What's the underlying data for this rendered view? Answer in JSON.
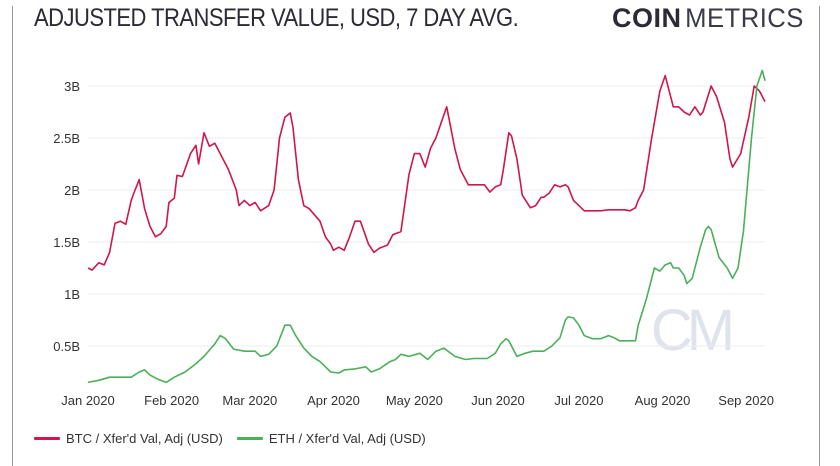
{
  "title": "ADJUSTED TRANSFER VALUE, USD, 7 DAY AVG.",
  "logo": {
    "bold": "COIN",
    "light": "METRICS",
    "watermark": "CM"
  },
  "chart_data": {
    "type": "line",
    "title": "ADJUSTED TRANSFER VALUE, USD, 7 DAY AVG.",
    "xlabel": "",
    "ylabel": "",
    "x_unit": "days since 2020-01-01",
    "xlim": [
      0,
      251
    ],
    "ylim": [
      0,
      3.2
    ],
    "y_unit": "billion USD",
    "grid": true,
    "legend_position": "bottom-left",
    "y_ticks": [
      {
        "v": 0.5,
        "label": "0.5B"
      },
      {
        "v": 1,
        "label": "1B"
      },
      {
        "v": 1.5,
        "label": "1.5B"
      },
      {
        "v": 2,
        "label": "2B"
      },
      {
        "v": 2.5,
        "label": "2.5B"
      },
      {
        "v": 3,
        "label": "3B"
      }
    ],
    "x_ticks": [
      {
        "v": 0,
        "label": "Jan 2020"
      },
      {
        "v": 31,
        "label": "Feb 2020"
      },
      {
        "v": 60,
        "label": "Mar 2020"
      },
      {
        "v": 91,
        "label": "Apr 2020"
      },
      {
        "v": 121,
        "label": "May 2020"
      },
      {
        "v": 152,
        "label": "Jun 2020"
      },
      {
        "v": 182,
        "label": "Jul 2020"
      },
      {
        "v": 213,
        "label": "Aug 2020"
      },
      {
        "v": 244,
        "label": "Sep 2020"
      }
    ],
    "series": [
      {
        "name": "BTC / Xfer'd Val, Adj (USD)",
        "color": "#d0164a",
        "points": [
          [
            0,
            1.25
          ],
          [
            1.5,
            1.23
          ],
          [
            4,
            1.3
          ],
          [
            6,
            1.28
          ],
          [
            8,
            1.4
          ],
          [
            10,
            1.68
          ],
          [
            12,
            1.7
          ],
          [
            14,
            1.67
          ],
          [
            16,
            1.9
          ],
          [
            17,
            1.97
          ],
          [
            19,
            2.1
          ],
          [
            21,
            1.82
          ],
          [
            23,
            1.65
          ],
          [
            25,
            1.55
          ],
          [
            27,
            1.58
          ],
          [
            29,
            1.65
          ],
          [
            30,
            1.88
          ],
          [
            32,
            1.92
          ],
          [
            33,
            2.14
          ],
          [
            35,
            2.13
          ],
          [
            38,
            2.35
          ],
          [
            40,
            2.43
          ],
          [
            41,
            2.25
          ],
          [
            43,
            2.55
          ],
          [
            45,
            2.42
          ],
          [
            47,
            2.45
          ],
          [
            49,
            2.35
          ],
          [
            52,
            2.2
          ],
          [
            55,
            2.0
          ],
          [
            56,
            1.85
          ],
          [
            58,
            1.9
          ],
          [
            60,
            1.85
          ],
          [
            62,
            1.88
          ],
          [
            64,
            1.8
          ],
          [
            67,
            1.85
          ],
          [
            69,
            2.0
          ],
          [
            71,
            2.5
          ],
          [
            73,
            2.7
          ],
          [
            75,
            2.74
          ],
          [
            76,
            2.6
          ],
          [
            78,
            2.1
          ],
          [
            80,
            1.85
          ],
          [
            82,
            1.82
          ],
          [
            86,
            1.7
          ],
          [
            88,
            1.55
          ],
          [
            90,
            1.48
          ],
          [
            91,
            1.42
          ],
          [
            93,
            1.45
          ],
          [
            95,
            1.42
          ],
          [
            97,
            1.55
          ],
          [
            99,
            1.7
          ],
          [
            101,
            1.7
          ],
          [
            104,
            1.48
          ],
          [
            106,
            1.4
          ],
          [
            108,
            1.44
          ],
          [
            111,
            1.47
          ],
          [
            113,
            1.57
          ],
          [
            116,
            1.6
          ],
          [
            119,
            2.15
          ],
          [
            121,
            2.35
          ],
          [
            123,
            2.35
          ],
          [
            125,
            2.22
          ],
          [
            127,
            2.4
          ],
          [
            129,
            2.5
          ],
          [
            133,
            2.8
          ],
          [
            136,
            2.4
          ],
          [
            138,
            2.2
          ],
          [
            141,
            2.05
          ],
          [
            143,
            2.05
          ],
          [
            145,
            2.05
          ],
          [
            147,
            2.05
          ],
          [
            149,
            1.98
          ],
          [
            151,
            2.03
          ],
          [
            153,
            2.05
          ],
          [
            154,
            2.2
          ],
          [
            156,
            2.55
          ],
          [
            157,
            2.52
          ],
          [
            159,
            2.3
          ],
          [
            161,
            1.95
          ],
          [
            164,
            1.83
          ],
          [
            166,
            1.85
          ],
          [
            168,
            1.93
          ],
          [
            169,
            1.93
          ],
          [
            171,
            1.97
          ],
          [
            173,
            2.05
          ],
          [
            175,
            2.03
          ],
          [
            177,
            2.05
          ],
          [
            178,
            2.03
          ],
          [
            180,
            1.9
          ],
          [
            182,
            1.85
          ],
          [
            184,
            1.8
          ],
          [
            186,
            1.8
          ],
          [
            190,
            1.8
          ],
          [
            193,
            1.81
          ],
          [
            199,
            1.81
          ],
          [
            201,
            1.8
          ],
          [
            203,
            1.83
          ],
          [
            204,
            1.9
          ],
          [
            206,
            2.0
          ],
          [
            209,
            2.5
          ],
          [
            212,
            2.95
          ],
          [
            214,
            3.1
          ],
          [
            216,
            2.9
          ],
          [
            217,
            2.8
          ],
          [
            219,
            2.8
          ],
          [
            221,
            2.75
          ],
          [
            223,
            2.72
          ],
          [
            225,
            2.8
          ],
          [
            227,
            2.72
          ],
          [
            228,
            2.75
          ],
          [
            231,
            3.0
          ],
          [
            233,
            2.9
          ],
          [
            236,
            2.65
          ],
          [
            238,
            2.3
          ],
          [
            239,
            2.22
          ],
          [
            242,
            2.35
          ],
          [
            245,
            2.7
          ],
          [
            247,
            3.0
          ],
          [
            249,
            2.95
          ],
          [
            251,
            2.85
          ]
        ]
      },
      {
        "name": "ETH / Xfer'd Val, Adj (USD)",
        "color": "#4caf5a",
        "points": [
          [
            0,
            0.15
          ],
          [
            4,
            0.17
          ],
          [
            8,
            0.2
          ],
          [
            12,
            0.2
          ],
          [
            16,
            0.2
          ],
          [
            19,
            0.25
          ],
          [
            21,
            0.27
          ],
          [
            23,
            0.22
          ],
          [
            26,
            0.18
          ],
          [
            29,
            0.15
          ],
          [
            32,
            0.2
          ],
          [
            36,
            0.25
          ],
          [
            40,
            0.33
          ],
          [
            43,
            0.4
          ],
          [
            47,
            0.52
          ],
          [
            49,
            0.6
          ],
          [
            51,
            0.57
          ],
          [
            54,
            0.47
          ],
          [
            58,
            0.45
          ],
          [
            62,
            0.45
          ],
          [
            64,
            0.4
          ],
          [
            67,
            0.42
          ],
          [
            70,
            0.5
          ],
          [
            73,
            0.7
          ],
          [
            75,
            0.7
          ],
          [
            77,
            0.6
          ],
          [
            80,
            0.48
          ],
          [
            83,
            0.4
          ],
          [
            86,
            0.35
          ],
          [
            90,
            0.25
          ],
          [
            93,
            0.24
          ],
          [
            95,
            0.27
          ],
          [
            99,
            0.28
          ],
          [
            103,
            0.3
          ],
          [
            105,
            0.25
          ],
          [
            108,
            0.28
          ],
          [
            112,
            0.35
          ],
          [
            114,
            0.37
          ],
          [
            116,
            0.42
          ],
          [
            119,
            0.4
          ],
          [
            123,
            0.43
          ],
          [
            126,
            0.37
          ],
          [
            129,
            0.45
          ],
          [
            132,
            0.48
          ],
          [
            136,
            0.4
          ],
          [
            140,
            0.37
          ],
          [
            143,
            0.38
          ],
          [
            148,
            0.38
          ],
          [
            151,
            0.43
          ],
          [
            153,
            0.52
          ],
          [
            155,
            0.57
          ],
          [
            156,
            0.55
          ],
          [
            159,
            0.4
          ],
          [
            162,
            0.43
          ],
          [
            165,
            0.45
          ],
          [
            169,
            0.45
          ],
          [
            172,
            0.5
          ],
          [
            175,
            0.58
          ],
          [
            177,
            0.75
          ],
          [
            178,
            0.78
          ],
          [
            180,
            0.77
          ],
          [
            182,
            0.7
          ],
          [
            184,
            0.6
          ],
          [
            187,
            0.57
          ],
          [
            190,
            0.57
          ],
          [
            193,
            0.6
          ],
          [
            195,
            0.58
          ],
          [
            197,
            0.55
          ],
          [
            200,
            0.55
          ],
          [
            203,
            0.55
          ],
          [
            204,
            0.7
          ],
          [
            207,
            0.95
          ],
          [
            210,
            1.25
          ],
          [
            212,
            1.22
          ],
          [
            214,
            1.28
          ],
          [
            216,
            1.3
          ],
          [
            217,
            1.25
          ],
          [
            219,
            1.25
          ],
          [
            221,
            1.18
          ],
          [
            222,
            1.1
          ],
          [
            224,
            1.15
          ],
          [
            227,
            1.45
          ],
          [
            229,
            1.62
          ],
          [
            230,
            1.65
          ],
          [
            231,
            1.62
          ],
          [
            234,
            1.35
          ],
          [
            237,
            1.25
          ],
          [
            239,
            1.15
          ],
          [
            241,
            1.25
          ],
          [
            243,
            1.6
          ],
          [
            246,
            2.5
          ],
          [
            248,
            3.0
          ],
          [
            250,
            3.15
          ],
          [
            251,
            3.05
          ]
        ]
      }
    ]
  }
}
